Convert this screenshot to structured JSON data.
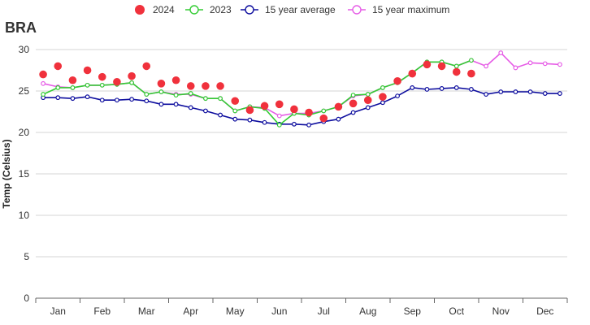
{
  "chart_data": {
    "type": "line",
    "title": "BRA",
    "ylabel": "Temp (Celsius)",
    "xlabel": "",
    "ylim": [
      0,
      30
    ],
    "yticks": [
      0,
      5,
      10,
      15,
      20,
      25,
      30
    ],
    "months": [
      "Jan",
      "Feb",
      "Mar",
      "Apr",
      "May",
      "Jun",
      "Jul",
      "Aug",
      "Sep",
      "Oct",
      "Nov",
      "Dec"
    ],
    "grid": true,
    "legend_position": "top",
    "series": [
      {
        "name": "2024",
        "style": "dots",
        "color": "#f0313c",
        "values": [
          27.0,
          28.0,
          26.3,
          27.5,
          26.7,
          26.1,
          26.8,
          28.0,
          25.9,
          26.3,
          25.6,
          25.6,
          25.6,
          23.8,
          22.7,
          23.2,
          23.4,
          22.8,
          22.4,
          21.7,
          23.1,
          23.5,
          23.9,
          24.3,
          26.2,
          27.1,
          28.2,
          28.0,
          27.3,
          27.1
        ]
      },
      {
        "name": "2023",
        "style": "line",
        "color": "#33cc33",
        "values": [
          24.6,
          25.4,
          25.4,
          25.7,
          25.7,
          25.8,
          26.0,
          24.6,
          24.9,
          24.5,
          24.7,
          24.1,
          24.1,
          22.6,
          23.1,
          22.9,
          20.9,
          22.3,
          22.1,
          22.6,
          23.1,
          24.5,
          24.6,
          25.4,
          26.0,
          27.2,
          28.5,
          28.5,
          28.0,
          28.7
        ]
      },
      {
        "name": "15 year average",
        "style": "line",
        "color": "#0d0d9e",
        "values": [
          24.2,
          24.2,
          24.1,
          24.3,
          23.9,
          23.9,
          24.0,
          23.8,
          23.4,
          23.4,
          23.0,
          22.6,
          22.1,
          21.6,
          21.5,
          21.2,
          21.0,
          21.0,
          20.9,
          21.3,
          21.6,
          22.4,
          23.0,
          23.6,
          24.4,
          25.4,
          25.2,
          25.3,
          25.4,
          25.2,
          24.6,
          24.9,
          24.9,
          24.9,
          24.7,
          24.7
        ]
      },
      {
        "name": "15 year maximum",
        "style": "line",
        "color": "#e65ce6",
        "values": [
          25.9,
          25.5,
          25.4,
          25.7,
          25.7,
          25.8,
          26.0,
          24.6,
          24.9,
          24.6,
          24.6,
          24.1,
          24.1,
          22.6,
          23.1,
          23.0,
          22.0,
          22.3,
          22.3,
          22.6,
          23.1,
          24.4,
          24.6,
          25.4,
          26.0,
          27.2,
          28.5,
          28.5,
          28.0,
          28.7,
          28.0,
          29.6,
          27.8,
          28.4,
          28.3,
          28.2
        ]
      }
    ]
  }
}
